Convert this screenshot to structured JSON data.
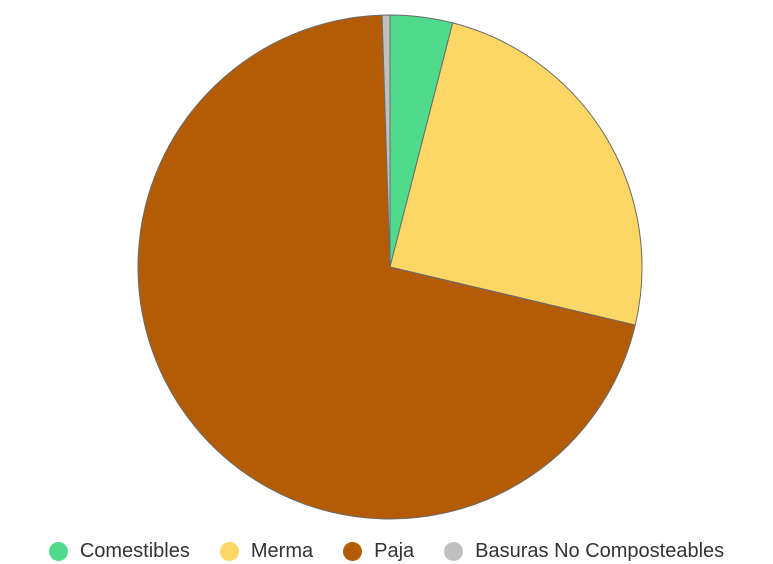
{
  "chart_data": {
    "type": "pie",
    "categories": [
      "Comestibles",
      "Merma",
      "Paja",
      "Basuras No Composteables"
    ],
    "values": [
      4.0,
      24.7,
      70.8,
      0.5
    ],
    "colors": [
      "#4fdb8b",
      "#fdd766",
      "#b35c05",
      "#c0c0c0"
    ],
    "title": "",
    "legend": "bottom",
    "start_angle_deg": 0,
    "direction": "clockwise",
    "slice_border_color": "#6b6b6b"
  }
}
